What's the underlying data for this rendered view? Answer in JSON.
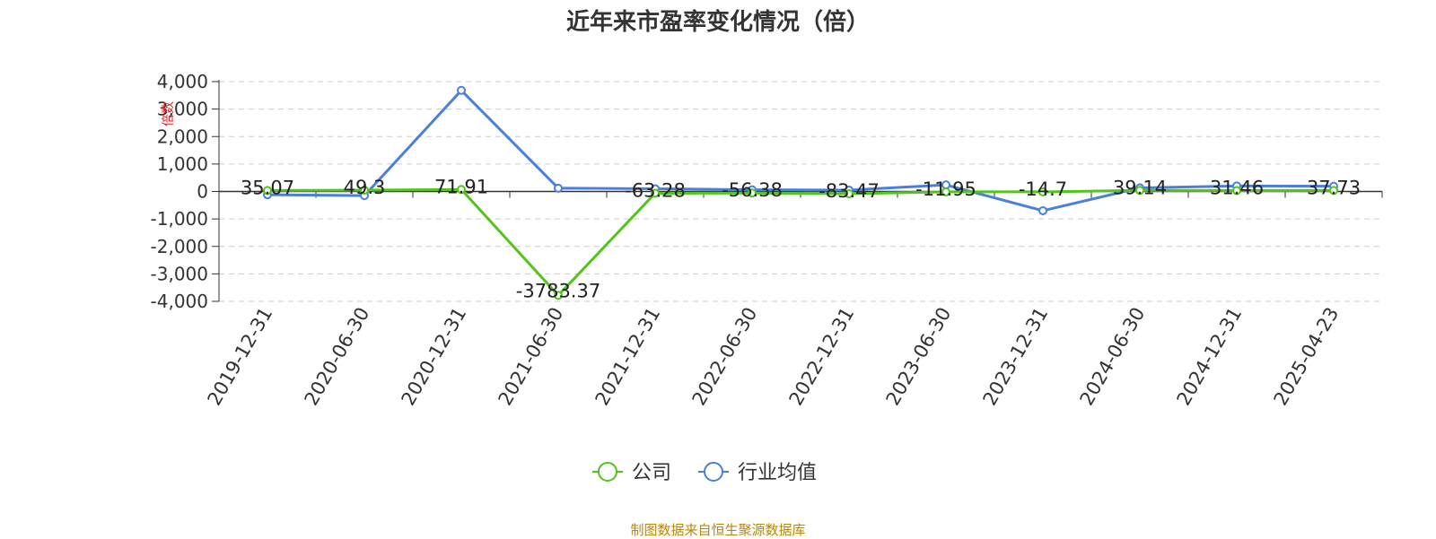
{
  "chart_data": {
    "type": "line",
    "title": "近年来市盈率变化情况（倍）",
    "ylabel": "倍数",
    "ylim": [
      -4000,
      4000
    ],
    "yticks": [
      4000,
      3000,
      2000,
      1000,
      0,
      -1000,
      -2000,
      -3000,
      -4000
    ],
    "ytick_labels": [
      "4,000",
      "3,000",
      "2,000",
      "1,000",
      "0",
      "-1,000",
      "-2,000",
      "-3,000",
      "-4,000"
    ],
    "categories": [
      "2019-12-31",
      "2020-06-30",
      "2020-12-31",
      "2021-06-30",
      "2021-12-31",
      "2022-06-30",
      "2022-12-31",
      "2023-06-30",
      "2023-12-31",
      "2024-06-30",
      "2024-12-31",
      "2025-04-23"
    ],
    "grid": true,
    "legend_position": "bottom",
    "series": [
      {
        "name": "公司",
        "color": "#52c41a",
        "values": [
          35.07,
          49.3,
          71.91,
          -3783.37,
          -63.28,
          -56.38,
          -83.47,
          -11.95,
          -14.7,
          39.14,
          31.46,
          37.73
        ],
        "labels": [
          "35.07",
          "49.3",
          "71.91",
          "-3783.37",
          "-63.28",
          "-56.38",
          "-83.47",
          "-11.95",
          "-14.7",
          "39.14",
          "31.46",
          "37.73"
        ]
      },
      {
        "name": "行业均值",
        "color": "#4a7fdc",
        "values": [
          -120,
          -150,
          3680,
          120,
          100,
          60,
          50,
          240,
          -700,
          130,
          200,
          190
        ]
      }
    ]
  },
  "source_note": "制图数据来自恒生聚源数据库"
}
